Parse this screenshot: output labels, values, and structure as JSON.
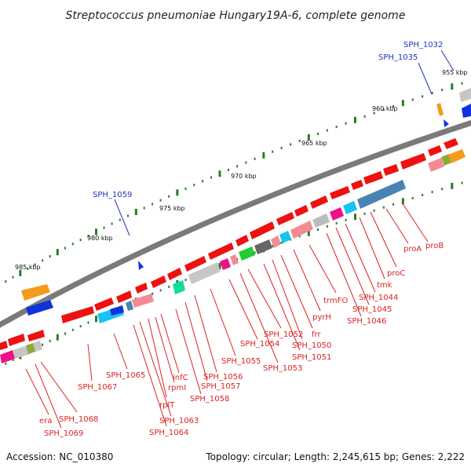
{
  "title": "Streptococcus pneumoniae Hungary19A-6, complete genome",
  "footer": {
    "accession": "Accession: NC_010380",
    "stats": "Topology: circular; Length: 2,245,615 bp; Genes: 2,222"
  },
  "ruler_labels": [
    "955 kbp",
    "960 kbp",
    "965 kbp",
    "970 kbp",
    "975 kbp",
    "980 kbp",
    "985 kbp"
  ],
  "colors": {
    "backbone": "#777777",
    "forward_gene": "#ee1111",
    "label_line_red": "#dd2222",
    "label_line_blue": "#2233bb",
    "tick": "#2a7a2a"
  },
  "blue_labels": [
    "SPH_1032",
    "SPH_1035",
    "SPH_1059"
  ],
  "red_labels": [
    "proB",
    "proA",
    "proC",
    "tmk",
    "SPH_1044",
    "SPH_1045",
    "SPH_1046",
    "trmFO",
    "pyrH",
    "frr",
    "SPH_1050",
    "SPH_1051",
    "SPH_1052",
    "SPH_1053",
    "SPH_1054",
    "SPH_1055",
    "SPH_1056",
    "SPH_1057",
    "SPH_1058",
    "infC",
    "rpmI",
    "rplT",
    "SPH_1063",
    "SPH_1064",
    "SPH_1065",
    "SPH_1067",
    "SPH_1068",
    "SPH_1069",
    "era"
  ]
}
